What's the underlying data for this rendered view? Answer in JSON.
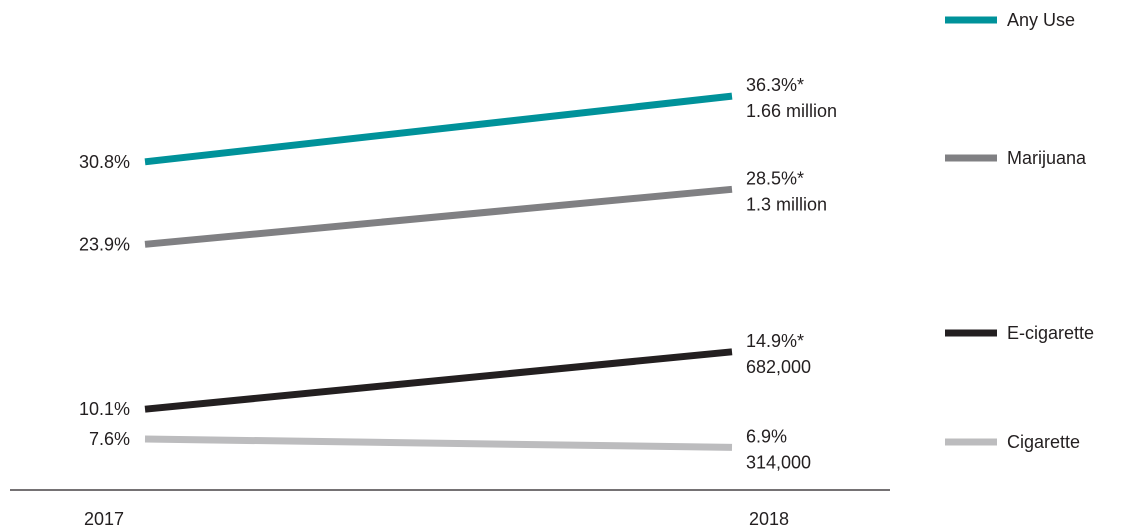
{
  "chart_data": {
    "type": "line",
    "x": [
      "2017",
      "2018"
    ],
    "ylim": [
      0,
      40
    ],
    "grid": false,
    "legend_position": "right",
    "series": [
      {
        "name": "Any Use",
        "color": "#00929a",
        "values": [
          30.8,
          36.3
        ],
        "start_label": "30.8%",
        "end_label": "36.3%*",
        "end_sublabel": "1.66 million"
      },
      {
        "name": "Marijuana",
        "color": "#808083",
        "values": [
          23.9,
          28.5
        ],
        "start_label": "23.9%",
        "end_label": "28.5%*",
        "end_sublabel": "1.3 million"
      },
      {
        "name": "E-cigarette",
        "color": "#231f20",
        "values": [
          10.1,
          14.9
        ],
        "start_label": "10.1%",
        "end_label": "14.9%*",
        "end_sublabel": "682,000"
      },
      {
        "name": "Cigarette",
        "color": "#bcbcbe",
        "values": [
          7.6,
          6.9
        ],
        "start_label": "7.6%",
        "end_label": "6.9%",
        "end_sublabel": "314,000"
      }
    ]
  }
}
